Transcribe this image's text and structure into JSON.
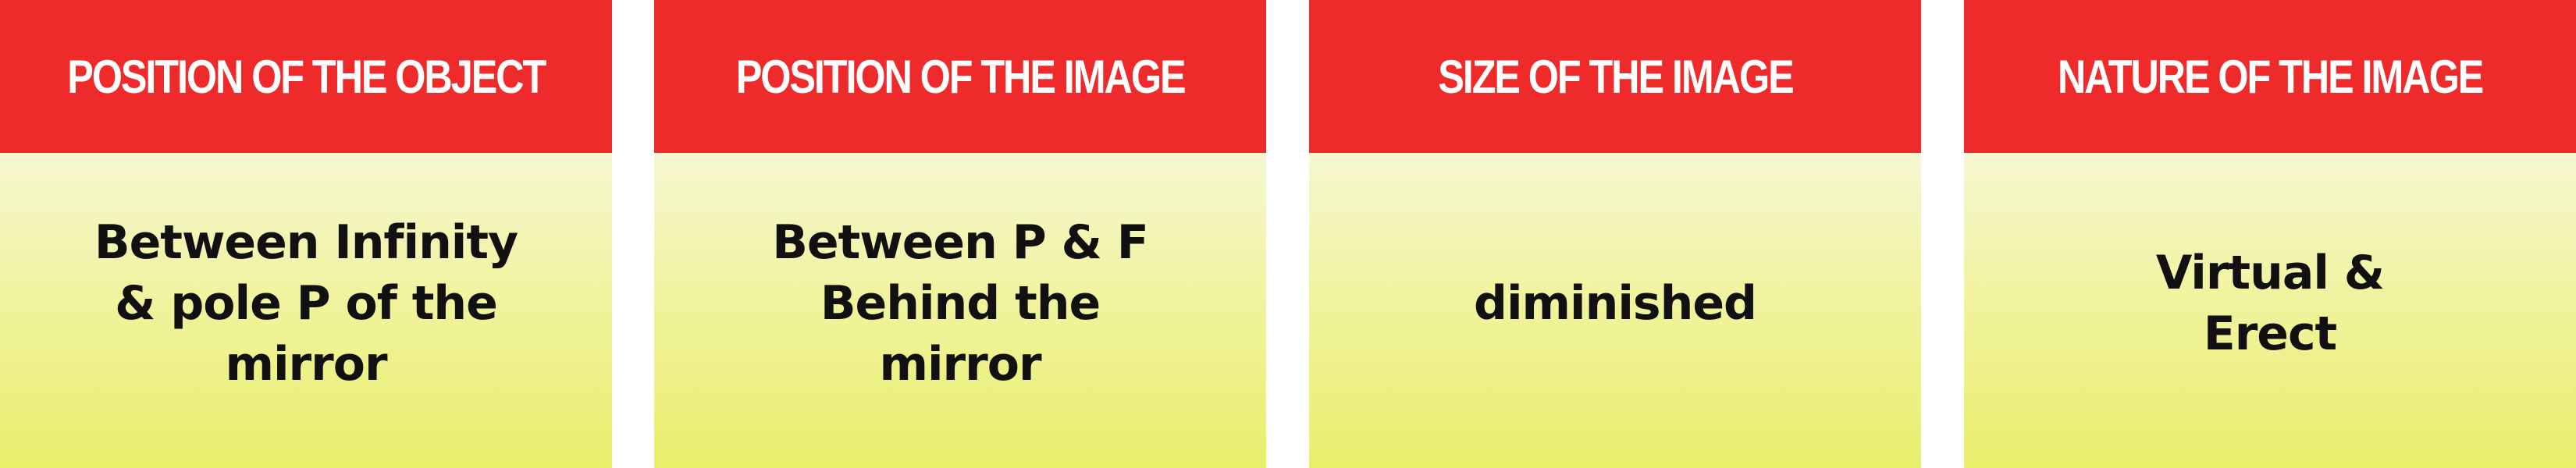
{
  "accent_colors": {
    "header_bg": "#ef2a2a",
    "header_text": "#ffffff",
    "body_bg_top": "#f6f7d2",
    "body_bg_bottom": "#e9ee6b",
    "body_text": "#111111"
  },
  "columns": [
    {
      "header": "POSITION OF THE OBJECT",
      "value": "Between Infinity\n& pole P of the\nmirror"
    },
    {
      "header": "POSITION OF THE IMAGE",
      "value": "Between P & F\nBehind the\nmirror"
    },
    {
      "header": "SIZE OF THE IMAGE",
      "value": "diminished"
    },
    {
      "header": "NATURE OF THE IMAGE",
      "value": "Virtual &\nErect"
    }
  ]
}
